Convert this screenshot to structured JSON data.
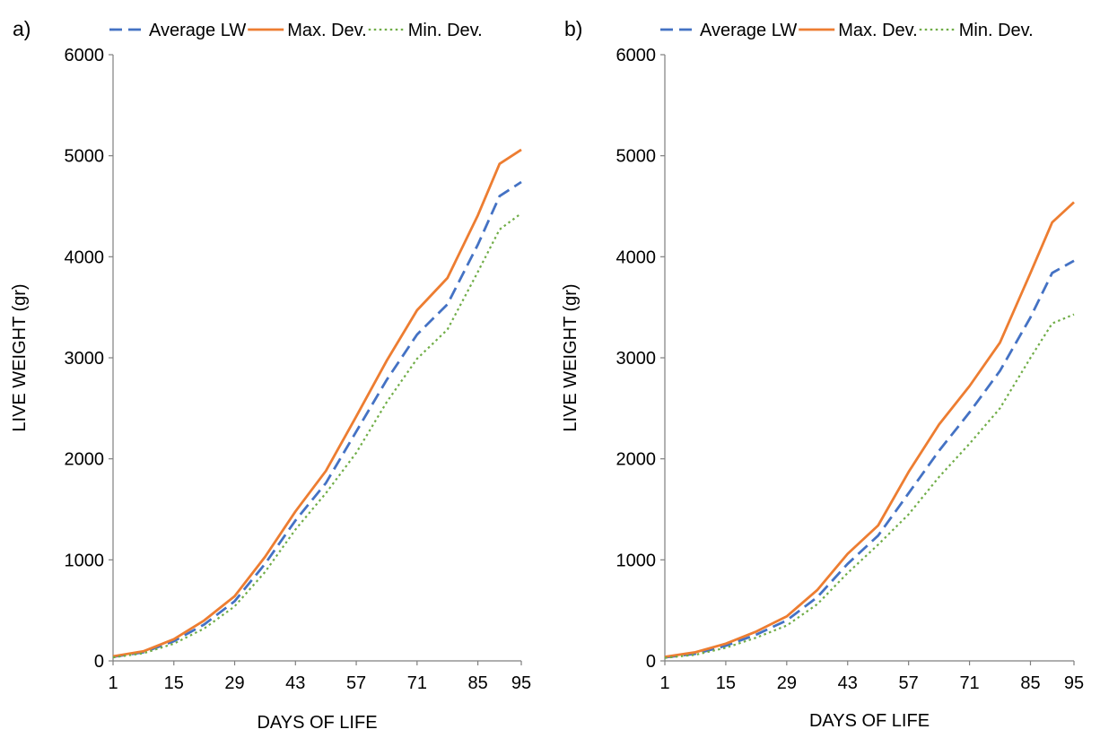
{
  "chart_data": [
    {
      "type": "line",
      "panel_label": "a)",
      "xlabel": "DAYS OF LIFE",
      "ylabel": "LIVE WEIGHT (gr)",
      "ylim": [
        0,
        6000
      ],
      "xlim": [
        1,
        95
      ],
      "yticks": [
        0,
        1000,
        2000,
        3000,
        4000,
        5000,
        6000
      ],
      "xticks": [
        1,
        15,
        29,
        43,
        57,
        71,
        85,
        95
      ],
      "grid": false,
      "legend_position": "top",
      "x": [
        1,
        8,
        15,
        22,
        29,
        36,
        43,
        50,
        57,
        64,
        71,
        78,
        85,
        90,
        95
      ],
      "series": [
        {
          "name": "Average LW",
          "color": "#4472C4",
          "style": "dashed",
          "values": [
            40,
            85,
            195,
            360,
            590,
            960,
            1390,
            1760,
            2270,
            2780,
            3230,
            3530,
            4120,
            4600,
            4740
          ]
        },
        {
          "name": "Max. Dev.",
          "color": "#ED7D31",
          "style": "solid",
          "values": [
            45,
            95,
            215,
            400,
            640,
            1030,
            1480,
            1880,
            2420,
            2970,
            3470,
            3790,
            4410,
            4920,
            5060
          ]
        },
        {
          "name": "Min. Dev.",
          "color": "#70AD47",
          "style": "dotted",
          "values": [
            35,
            75,
            170,
            320,
            540,
            880,
            1300,
            1660,
            2060,
            2560,
            2990,
            3280,
            3850,
            4270,
            4430
          ]
        }
      ]
    },
    {
      "type": "line",
      "panel_label": "b)",
      "xlabel": "DAYS OF LIFE",
      "ylabel": "LIVE WEIGHT (gr)",
      "ylim": [
        0,
        6000
      ],
      "xlim": [
        1,
        95
      ],
      "yticks": [
        0,
        1000,
        2000,
        3000,
        4000,
        5000,
        6000
      ],
      "xticks": [
        1,
        15,
        29,
        43,
        57,
        71,
        85,
        95
      ],
      "grid": false,
      "legend_position": "top",
      "x": [
        1,
        8,
        15,
        22,
        29,
        36,
        43,
        50,
        57,
        64,
        71,
        78,
        85,
        90,
        95
      ],
      "series": [
        {
          "name": "Average LW",
          "color": "#4472C4",
          "style": "dashed",
          "values": [
            35,
            70,
            150,
            260,
            400,
            630,
            960,
            1240,
            1660,
            2080,
            2460,
            2870,
            3400,
            3840,
            3960
          ]
        },
        {
          "name": "Max. Dev.",
          "color": "#ED7D31",
          "style": "solid",
          "values": [
            40,
            85,
            170,
            290,
            440,
            700,
            1060,
            1340,
            1870,
            2340,
            2720,
            3150,
            3840,
            4340,
            4540
          ]
        },
        {
          "name": "Min. Dev.",
          "color": "#70AD47",
          "style": "dotted",
          "values": [
            30,
            60,
            130,
            230,
            350,
            560,
            870,
            1150,
            1450,
            1820,
            2150,
            2500,
            3000,
            3340,
            3430
          ]
        }
      ]
    }
  ]
}
